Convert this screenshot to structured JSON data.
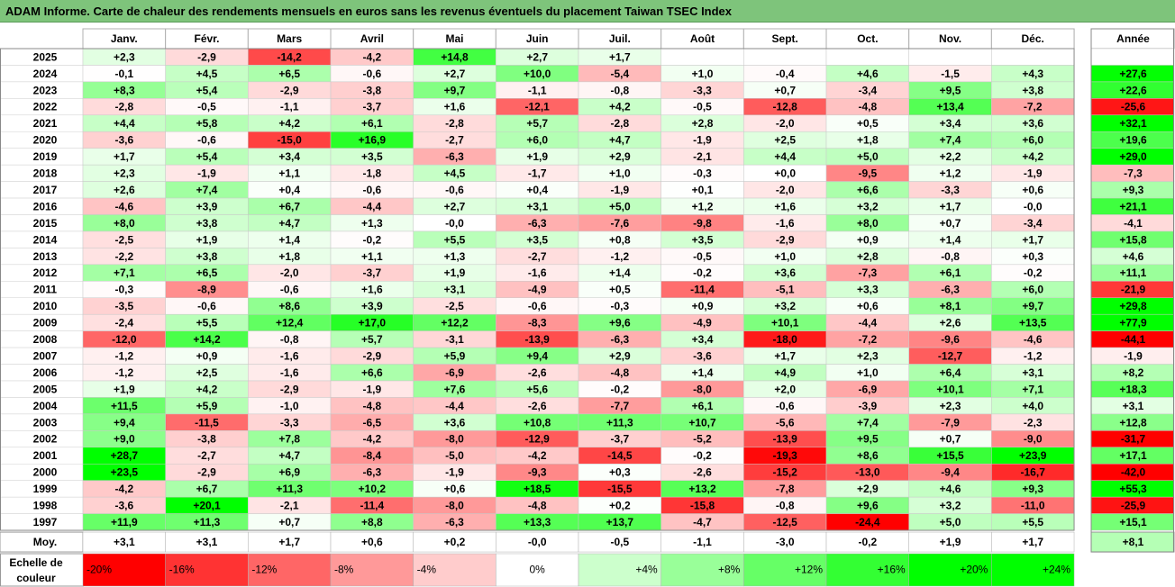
{
  "title": "ADAM Informe. Carte de chaleur des rendements mensuels en euros sans les revenus éventuels du placement Taiwan TSEC Index",
  "chart_data": {
    "type": "heatmap",
    "columns": [
      "Janv.",
      "Févr.",
      "Mars",
      "Avril",
      "Mai",
      "Juin",
      "Juil.",
      "Août",
      "Sept.",
      "Oct.",
      "Nov.",
      "Déc."
    ],
    "year_column_label": "Année",
    "rows": [
      {
        "year": "2025",
        "values": [
          "+2,3",
          "-2,9",
          "-14,2",
          "-4,2",
          "+14,8",
          "+2,7",
          "+1,7",
          "",
          "",
          "",
          "",
          ""
        ],
        "annual": ""
      },
      {
        "year": "2024",
        "values": [
          "-0,1",
          "+4,5",
          "+6,5",
          "-0,6",
          "+2,7",
          "+10,0",
          "-5,4",
          "+1,0",
          "-0,4",
          "+4,6",
          "-1,5",
          "+4,3"
        ],
        "annual": "+27,6"
      },
      {
        "year": "2023",
        "values": [
          "+8,3",
          "+5,4",
          "-2,9",
          "-3,8",
          "+9,7",
          "-1,1",
          "-0,8",
          "-3,3",
          "+0,7",
          "-3,4",
          "+9,5",
          "+3,8"
        ],
        "annual": "+22,6"
      },
      {
        "year": "2022",
        "values": [
          "-2,8",
          "-0,5",
          "-1,1",
          "-3,7",
          "+1,6",
          "-12,1",
          "+4,2",
          "-0,5",
          "-12,8",
          "-4,8",
          "+13,4",
          "-7,2"
        ],
        "annual": "-25,6"
      },
      {
        "year": "2021",
        "values": [
          "+4,4",
          "+5,8",
          "+4,2",
          "+6,1",
          "-2,8",
          "+5,7",
          "-2,8",
          "+2,8",
          "-2,0",
          "+0,5",
          "+3,4",
          "+3,6"
        ],
        "annual": "+32,1"
      },
      {
        "year": "2020",
        "values": [
          "-3,6",
          "-0,6",
          "-15,0",
          "+16,9",
          "-2,7",
          "+6,0",
          "+4,7",
          "-1,9",
          "+2,5",
          "+1,8",
          "+7,4",
          "+6,0"
        ],
        "annual": "+19,6"
      },
      {
        "year": "2019",
        "values": [
          "+1,7",
          "+5,4",
          "+3,4",
          "+3,5",
          "-6,3",
          "+1,9",
          "+2,9",
          "-2,1",
          "+4,4",
          "+5,0",
          "+2,2",
          "+4,2"
        ],
        "annual": "+29,0"
      },
      {
        "year": "2018",
        "values": [
          "+2,3",
          "-1,9",
          "+1,1",
          "-1,8",
          "+4,5",
          "-1,7",
          "+1,0",
          "-0,3",
          "+0,0",
          "-9,5",
          "+1,2",
          "-1,9"
        ],
        "annual": "-7,3"
      },
      {
        "year": "2017",
        "values": [
          "+2,6",
          "+7,4",
          "+0,4",
          "-0,6",
          "-0,6",
          "+0,4",
          "-1,9",
          "+0,1",
          "-2,0",
          "+6,6",
          "-3,3",
          "+0,6"
        ],
        "annual": "+9,3"
      },
      {
        "year": "2016",
        "values": [
          "-4,6",
          "+3,9",
          "+6,7",
          "-4,4",
          "+2,7",
          "+3,1",
          "+5,0",
          "+1,2",
          "+1,6",
          "+3,2",
          "+1,7",
          "-0,0"
        ],
        "annual": "+21,1"
      },
      {
        "year": "2015",
        "values": [
          "+8,0",
          "+3,8",
          "+4,7",
          "+1,3",
          "-0,0",
          "-6,3",
          "-7,6",
          "-9,8",
          "-1,6",
          "+8,0",
          "+0,7",
          "-3,4"
        ],
        "annual": "-4,1"
      },
      {
        "year": "2014",
        "values": [
          "-2,5",
          "+1,9",
          "+1,4",
          "-0,2",
          "+5,5",
          "+3,5",
          "+0,8",
          "+3,5",
          "-2,9",
          "+0,9",
          "+1,4",
          "+1,7"
        ],
        "annual": "+15,8"
      },
      {
        "year": "2013",
        "values": [
          "-2,2",
          "+3,8",
          "+1,8",
          "+1,1",
          "+1,3",
          "-2,7",
          "-1,2",
          "-0,5",
          "+1,0",
          "+2,8",
          "-0,8",
          "+0,3"
        ],
        "annual": "+4,6"
      },
      {
        "year": "2012",
        "values": [
          "+7,1",
          "+6,5",
          "-2,0",
          "-3,7",
          "+1,9",
          "-1,6",
          "+1,4",
          "-0,2",
          "+3,6",
          "-7,3",
          "+6,1",
          "-0,2"
        ],
        "annual": "+11,1"
      },
      {
        "year": "2011",
        "values": [
          "-0,3",
          "-8,9",
          "-0,6",
          "+1,6",
          "+3,1",
          "-4,9",
          "+0,5",
          "-11,4",
          "-5,1",
          "+3,3",
          "-6,3",
          "+6,0"
        ],
        "annual": "-21,9"
      },
      {
        "year": "2010",
        "values": [
          "-3,5",
          "-0,6",
          "+8,6",
          "+3,9",
          "-2,5",
          "-0,6",
          "-0,3",
          "+0,9",
          "+3,2",
          "+0,6",
          "+8,1",
          "+9,7"
        ],
        "annual": "+29,8"
      },
      {
        "year": "2009",
        "values": [
          "-2,4",
          "+5,5",
          "+12,4",
          "+17,0",
          "+12,2",
          "-8,3",
          "+9,6",
          "-4,9",
          "+10,1",
          "-4,4",
          "+2,6",
          "+13,5"
        ],
        "annual": "+77,9"
      },
      {
        "year": "2008",
        "values": [
          "-12,0",
          "+14,2",
          "-0,8",
          "+5,7",
          "-3,1",
          "-13,9",
          "-6,3",
          "+3,4",
          "-18,0",
          "-7,2",
          "-9,6",
          "-4,6"
        ],
        "annual": "-44,1"
      },
      {
        "year": "2007",
        "values": [
          "-1,2",
          "+0,9",
          "-1,6",
          "-2,9",
          "+5,9",
          "+9,4",
          "+2,9",
          "-3,6",
          "+1,7",
          "+2,3",
          "-12,7",
          "-1,2"
        ],
        "annual": "-1,9"
      },
      {
        "year": "2006",
        "values": [
          "-1,2",
          "+2,5",
          "-1,6",
          "+6,6",
          "-6,9",
          "-2,6",
          "-4,8",
          "+1,4",
          "+4,9",
          "+1,0",
          "+6,4",
          "+3,1"
        ],
        "annual": "+8,2"
      },
      {
        "year": "2005",
        "values": [
          "+1,9",
          "+4,2",
          "-2,9",
          "-1,9",
          "+7,6",
          "+5,6",
          "-0,2",
          "-8,0",
          "+2,0",
          "-6,9",
          "+10,1",
          "+7,1"
        ],
        "annual": "+18,3"
      },
      {
        "year": "2004",
        "values": [
          "+11,5",
          "+5,9",
          "-1,0",
          "-4,8",
          "-4,4",
          "-2,6",
          "-7,7",
          "+6,1",
          "-0,6",
          "-3,9",
          "+2,3",
          "+4,0"
        ],
        "annual": "+3,1"
      },
      {
        "year": "2003",
        "values": [
          "+9,4",
          "-11,5",
          "-3,3",
          "-6,5",
          "+3,6",
          "+10,8",
          "+11,3",
          "+10,7",
          "-5,6",
          "+7,4",
          "-7,9",
          "-2,3"
        ],
        "annual": "+12,8"
      },
      {
        "year": "2002",
        "values": [
          "+9,0",
          "-3,8",
          "+7,8",
          "-4,2",
          "-8,0",
          "-12,9",
          "-3,7",
          "-5,2",
          "-13,9",
          "+9,5",
          "+0,7",
          "-9,0"
        ],
        "annual": "-31,7"
      },
      {
        "year": "2001",
        "values": [
          "+28,7",
          "-2,7",
          "+4,7",
          "-8,4",
          "-5,0",
          "-4,2",
          "-14,5",
          "-0,2",
          "-19,3",
          "+8,6",
          "+15,5",
          "+23,9"
        ],
        "annual": "+17,1"
      },
      {
        "year": "2000",
        "values": [
          "+23,5",
          "-2,9",
          "+6,9",
          "-6,3",
          "-1,9",
          "-9,3",
          "+0,3",
          "-2,6",
          "-15,2",
          "-13,0",
          "-9,4",
          "-16,7"
        ],
        "annual": "-42,0"
      },
      {
        "year": "1999",
        "values": [
          "-4,2",
          "+6,7",
          "+11,3",
          "+10,2",
          "+0,6",
          "+18,5",
          "-15,5",
          "+13,2",
          "-7,8",
          "+2,9",
          "+4,6",
          "+9,3"
        ],
        "annual": "+55,3"
      },
      {
        "year": "1998",
        "values": [
          "-3,6",
          "+20,1",
          "-2,1",
          "-11,4",
          "-8,0",
          "-4,8",
          "+0,2",
          "-15,8",
          "-0,8",
          "+9,6",
          "+3,2",
          "-11,0"
        ],
        "annual": "-25,9"
      },
      {
        "year": "1997",
        "values": [
          "+11,9",
          "+11,3",
          "+0,7",
          "+8,8",
          "-6,3",
          "+13,3",
          "+13,7",
          "-4,7",
          "-12,5",
          "-24,4",
          "+5,0",
          "+5,5"
        ],
        "annual": "+15,1"
      }
    ],
    "average": {
      "label": "Moy.",
      "values": [
        "+3,1",
        "+3,1",
        "+1,7",
        "+0,6",
        "+0,2",
        "-0,0",
        "-0,5",
        "-1,1",
        "-3,0",
        "-0,2",
        "+1,9",
        "+1,7"
      ],
      "annual": "+8,1"
    },
    "color_scale": {
      "label_line1": "Echelle de",
      "label_line2": "couleur",
      "steps": [
        "-20%",
        "-16%",
        "-12%",
        "-8%",
        "-4%",
        "0%",
        "+4%",
        "+8%",
        "+12%",
        "+16%",
        "+20%",
        "+24%"
      ],
      "negative_color": "#ff0000",
      "neutral_color": "#ffffff",
      "positive_color": "#00ff00"
    }
  }
}
